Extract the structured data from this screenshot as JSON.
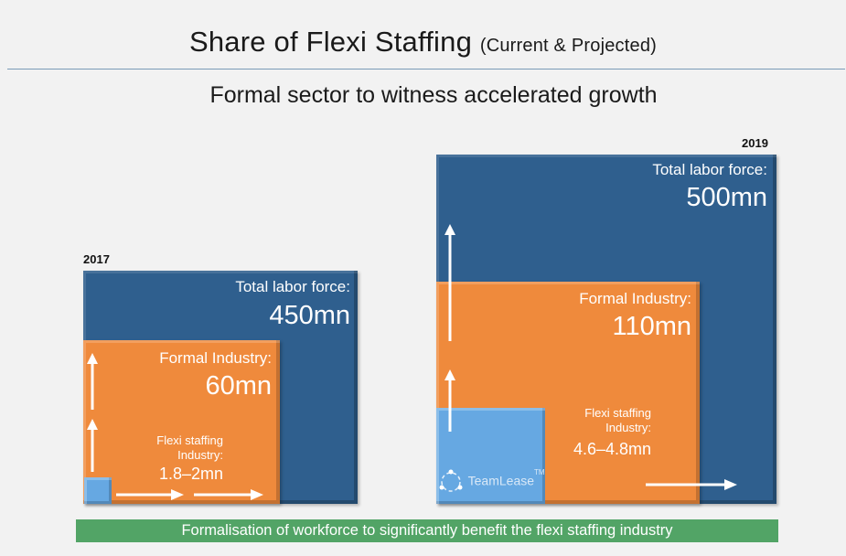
{
  "title": "Share of Flexi Staffing",
  "title_suffix": "(Current & Projected)",
  "subtitle": "Formal sector to witness accelerated growth",
  "panels": [
    {
      "year": "2017",
      "total_label": "Total labor force:",
      "total_value": "450mn",
      "formal_label": "Formal Industry:",
      "formal_value": "60mn",
      "flexi_label_1": "Flexi staffing",
      "flexi_label_2": "Industry:",
      "flexi_value": "1.8–2mn"
    },
    {
      "year": "2019",
      "total_label": "Total labor force:",
      "total_value": "500mn",
      "formal_label": "Formal Industry:",
      "formal_value": "110mn",
      "flexi_label_1": "Flexi staffing",
      "flexi_label_2": "Industry:",
      "flexi_value": "4.6–4.8mn"
    }
  ],
  "logo_text": "TeamLease",
  "logo_tm": "TM",
  "footer": "Formalisation of workforce to significantly benefit the flexi staffing industry",
  "colors": {
    "total": "#2f5f8e",
    "formal": "#ef8a3c",
    "flexi": "#66a8e2",
    "footer": "#52a466"
  }
}
